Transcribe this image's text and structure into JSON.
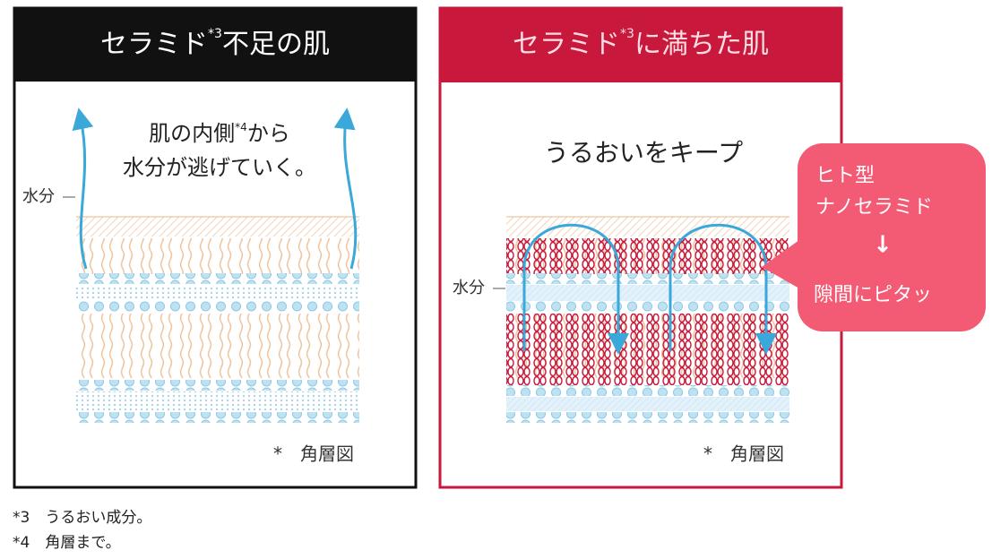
{
  "left_panel": {
    "title": {
      "before": "セラミド",
      "note": "*3",
      "after": "不足の肌"
    },
    "caption": {
      "line1_before": "肌の内側",
      "line1_note": "*4",
      "line1_after": "から",
      "line2": "水分が逃げていく。"
    },
    "water_label": "水分",
    "figure_note": "*　角層図"
  },
  "right_panel": {
    "title": {
      "before": "セラミド",
      "note": "*3",
      "after": "に満ちた肌"
    },
    "caption": "うるおいをキープ",
    "water_label": "水分",
    "figure_note": "*　角層図"
  },
  "callout": {
    "lines": [
      "ヒト型",
      "ナノセラミド"
    ],
    "arrow": "↓",
    "result": "隙間にピタッ"
  },
  "footnotes": [
    "*3　うるおい成分。",
    "*4　角層まで。"
  ]
}
